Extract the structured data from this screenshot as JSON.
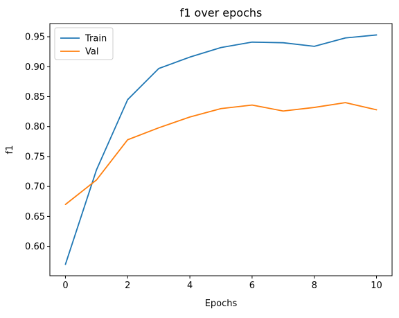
{
  "chart_data": {
    "type": "line",
    "title": "f1 over epochs",
    "xlabel": "Epochs",
    "ylabel": "f1",
    "x": [
      0,
      1,
      2,
      3,
      4,
      5,
      6,
      7,
      8,
      9,
      10
    ],
    "series": [
      {
        "name": "Train",
        "color": "#1f77b4",
        "values": [
          0.57,
          0.728,
          0.845,
          0.897,
          0.916,
          0.932,
          0.941,
          0.94,
          0.934,
          0.948,
          0.953
        ]
      },
      {
        "name": "Val",
        "color": "#ff7f0e",
        "values": [
          0.67,
          0.711,
          0.778,
          0.798,
          0.816,
          0.83,
          0.836,
          0.826,
          0.832,
          0.84,
          0.828
        ]
      }
    ],
    "xlim": [
      -0.5,
      10.5
    ],
    "ylim": [
      0.551,
      0.972
    ],
    "xticks": [
      0,
      2,
      4,
      6,
      8,
      10
    ],
    "yticks": [
      0.6,
      0.65,
      0.7,
      0.75,
      0.8,
      0.85,
      0.9,
      0.95
    ],
    "grid": false,
    "legend_position": "top-left"
  }
}
